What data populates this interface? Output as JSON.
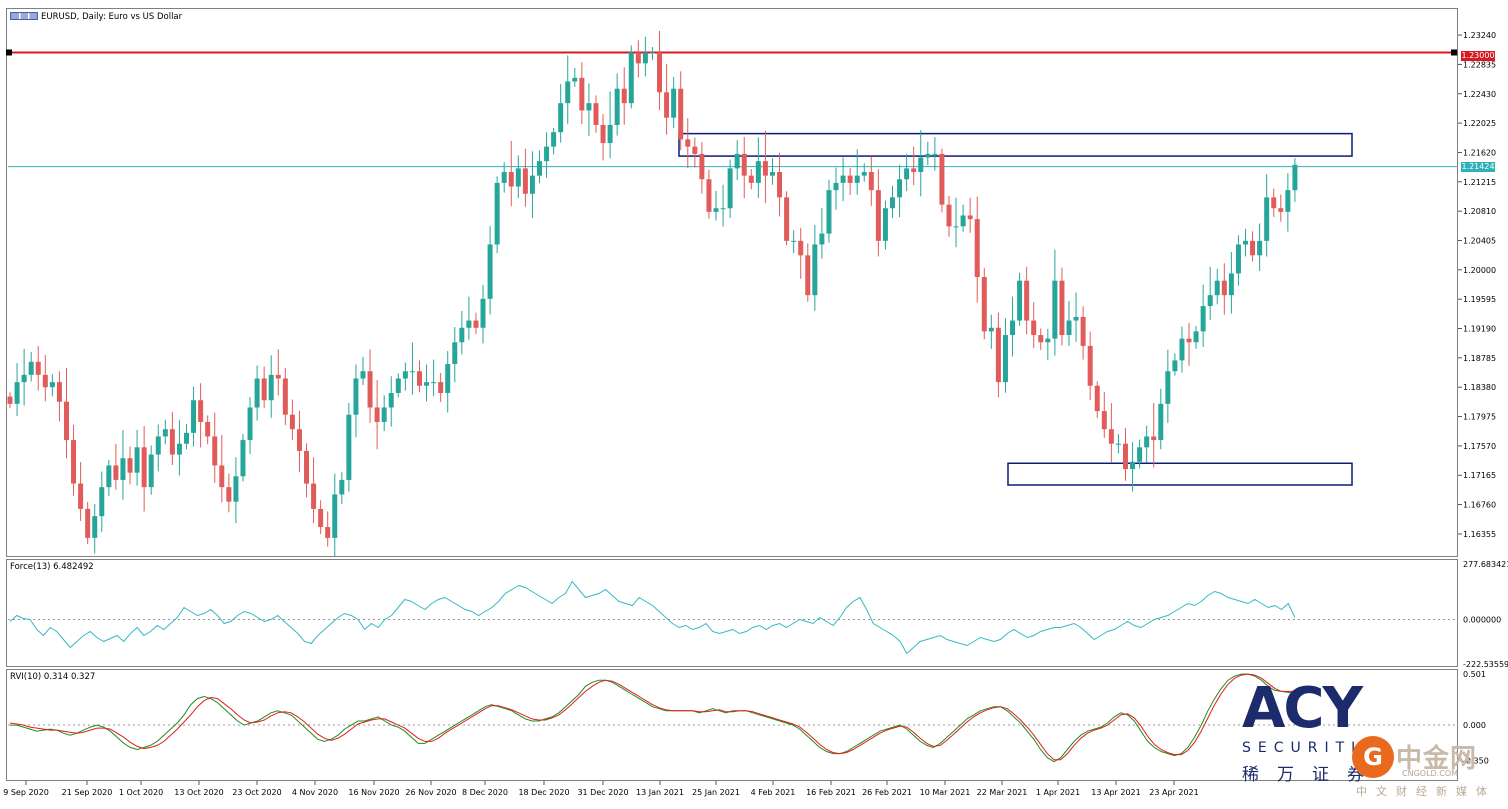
{
  "window": {
    "title": "EURUSD, Daily:  Euro vs US Dollar"
  },
  "colors": {
    "bull": "#26a69a",
    "bear": "#e25b5b",
    "resistance": "#d71920",
    "current_price_line": "#2eb0b8",
    "zone_box": "#0a1b7a",
    "force_line": "#35b9c4",
    "rvi_main": "#1f8c1f",
    "rvi_signal": "#e01e1e"
  },
  "badges": {
    "resistance": "1.23000",
    "current": "1.21424"
  },
  "indicators": {
    "force_title": "Force(13) 6.482492",
    "rvi_title": "RVI(10) 0.314 0.327"
  },
  "watermark": {
    "acy": "ACY",
    "securities": "SECURITIES",
    "acy_cn": "稀万证券",
    "cngold_cn": "中金网",
    "cngold_url": "CNGOLD.COM",
    "cngold_sub": "中文财经新媒体"
  },
  "chart_data": [
    {
      "type": "candlestick",
      "title": "EURUSD, Daily:  Euro vs US Dollar",
      "ylim": [
        1.1605,
        1.236
      ],
      "y_ticks": [
        "1.23240",
        "1.22835",
        "1.22430",
        "1.22025",
        "1.21620",
        "1.21215",
        "1.20810",
        "1.20405",
        "1.20000",
        "1.19595",
        "1.19190",
        "1.18785",
        "1.18380",
        "1.17975",
        "1.17570",
        "1.17165",
        "1.16760",
        "1.16355"
      ],
      "x_ticks": [
        "9 Sep 2020",
        "21 Sep 2020",
        "1 Oct 2020",
        "13 Oct 2020",
        "23 Oct 2020",
        "4 Nov 2020",
        "16 Nov 2020",
        "26 Nov 2020",
        "8 Dec 2020",
        "18 Dec 2020",
        "31 Dec 2020",
        "13 Jan 2021",
        "25 Jan 2021",
        "4 Feb 2021",
        "16 Feb 2021",
        "26 Feb 2021",
        "10 Mar 2021",
        "22 Mar 2021",
        "1 Apr 2021",
        "13 Apr 2021",
        "23 Apr 2021"
      ],
      "horizontal_lines": [
        {
          "price": 1.23,
          "label": "1.23000",
          "color": "#d71920"
        },
        {
          "price": 1.21424,
          "label": "1.21424",
          "color": "#2eb0b8"
        }
      ],
      "zones": [
        {
          "from_date": "19 Jan 2021",
          "to_date": "14 May 2021",
          "low": 1.2157,
          "high": 1.2188
        },
        {
          "from_date": "25 Mar 2021",
          "to_date": "14 May 2021",
          "low": 1.1703,
          "high": 1.1733
        }
      ],
      "close": [
        1.1815,
        1.1845,
        1.1855,
        1.1873,
        1.1855,
        1.1838,
        1.1845,
        1.1818,
        1.1765,
        1.1705,
        1.167,
        1.163,
        1.166,
        1.17,
        1.173,
        1.171,
        1.174,
        1.172,
        1.1755,
        1.17,
        1.1745,
        1.177,
        1.178,
        1.1745,
        1.176,
        1.1775,
        1.182,
        1.179,
        1.177,
        1.173,
        1.17,
        1.168,
        1.1715,
        1.1765,
        1.181,
        1.185,
        1.182,
        1.1855,
        1.185,
        1.18,
        1.178,
        1.175,
        1.1705,
        1.167,
        1.1645,
        1.163,
        1.169,
        1.171,
        1.18,
        1.185,
        1.186,
        1.181,
        1.179,
        1.181,
        1.183,
        1.185,
        1.186,
        1.186,
        1.184,
        1.1845,
        1.1845,
        1.183,
        1.187,
        1.19,
        1.192,
        1.193,
        1.192,
        1.196,
        1.2035,
        1.212,
        1.2135,
        1.2115,
        1.214,
        1.2105,
        1.213,
        1.215,
        1.217,
        1.219,
        1.223,
        1.226,
        1.2265,
        1.222,
        1.223,
        1.22,
        1.2175,
        1.22,
        1.225,
        1.223,
        1.23,
        1.2285,
        1.23,
        1.23,
        1.2245,
        1.221,
        1.225,
        1.218,
        1.217,
        1.216,
        1.2125,
        1.208,
        1.2085,
        1.2085,
        1.214,
        1.216,
        1.213,
        1.212,
        1.215,
        1.213,
        1.2135,
        1.21,
        1.204,
        1.204,
        1.202,
        1.1965,
        1.2035,
        1.205,
        1.211,
        1.212,
        1.213,
        1.212,
        1.213,
        1.2135,
        1.211,
        1.204,
        1.2085,
        1.21,
        1.2125,
        1.214,
        1.2135,
        1.2155,
        1.216,
        1.216,
        1.209,
        1.206,
        1.206,
        1.2075,
        1.207,
        1.199,
        1.1915,
        1.192,
        1.1845,
        1.191,
        1.193,
        1.1985,
        1.193,
        1.191,
        1.19,
        1.1905,
        1.1985,
        1.191,
        1.193,
        1.1935,
        1.1895,
        1.184,
        1.1805,
        1.178,
        1.176,
        1.176,
        1.1725,
        1.1735,
        1.1755,
        1.177,
        1.1765,
        1.1815,
        1.186,
        1.1875,
        1.1905,
        1.19,
        1.1915,
        1.195,
        1.1965,
        1.1985,
        1.1965,
        1.1995,
        1.2035,
        1.204,
        1.202,
        1.204,
        1.21,
        1.2085,
        1.208,
        1.211,
        1.2145
      ],
      "series": [
        {
          "name": "EURUSD Daily candles",
          "open": [
            1.1825,
            1.1815,
            1.1845,
            1.1855,
            1.1873,
            1.1855,
            1.1838,
            1.1845,
            1.1818,
            1.1765,
            1.1705,
            1.167,
            1.163,
            1.166,
            1.17,
            1.173,
            1.171,
            1.174,
            1.172,
            1.1755,
            1.17,
            1.1745,
            1.177,
            1.178,
            1.1745,
            1.176,
            1.1775,
            1.182,
            1.179,
            1.177,
            1.173,
            1.17,
            1.168,
            1.1715,
            1.1765,
            1.181,
            1.185,
            1.182,
            1.1855,
            1.185,
            1.18,
            1.178,
            1.175,
            1.1705,
            1.167,
            1.1645,
            1.163,
            1.169,
            1.171,
            1.18,
            1.185,
            1.186,
            1.181,
            1.179,
            1.181,
            1.183,
            1.185,
            1.186,
            1.186,
            1.184,
            1.1845,
            1.1845,
            1.183,
            1.187,
            1.19,
            1.192,
            1.193,
            1.192,
            1.196,
            1.2035,
            1.212,
            1.2135,
            1.2115,
            1.214,
            1.2105,
            1.213,
            1.215,
            1.217,
            1.219,
            1.223,
            1.226,
            1.2265,
            1.222,
            1.223,
            1.22,
            1.2175,
            1.22,
            1.225,
            1.223,
            1.23,
            1.2285,
            1.23,
            1.23,
            1.2245,
            1.221,
            1.225,
            1.218,
            1.217,
            1.216,
            1.2125,
            1.208,
            1.2085,
            1.2085,
            1.214,
            1.216,
            1.213,
            1.212,
            1.215,
            1.213,
            1.2135,
            1.21,
            1.204,
            1.204,
            1.202,
            1.1965,
            1.2035,
            1.205,
            1.211,
            1.212,
            1.213,
            1.212,
            1.213,
            1.2135,
            1.211,
            1.204,
            1.2085,
            1.21,
            1.2125,
            1.214,
            1.2135,
            1.2155,
            1.216,
            1.216,
            1.209,
            1.206,
            1.206,
            1.2075,
            1.207,
            1.199,
            1.1915,
            1.192,
            1.1845,
            1.191,
            1.193,
            1.1985,
            1.193,
            1.191,
            1.19,
            1.1905,
            1.1985,
            1.191,
            1.193,
            1.1935,
            1.1895,
            1.184,
            1.1805,
            1.178,
            1.176,
            1.176,
            1.1725,
            1.1735,
            1.1755,
            1.177,
            1.1765,
            1.1815,
            1.186,
            1.1875,
            1.1905,
            1.19,
            1.1915,
            1.195,
            1.1965,
            1.1985,
            1.1965,
            1.1995,
            1.2035,
            1.204,
            1.202,
            1.204,
            1.21,
            1.2085,
            1.208,
            1.211
          ]
        }
      ]
    },
    {
      "type": "line",
      "title": "Force(13) 6.482492",
      "ylim": [
        -222.53559,
        277.683421
      ],
      "y_ticks": [
        "277.683421",
        "0.000000",
        "-222.53559"
      ],
      "series": [
        {
          "name": "Force(13)",
          "color": "#35b9c4",
          "values": [
            -10,
            20,
            5,
            0,
            -50,
            -80,
            -40,
            -60,
            -100,
            -140,
            -110,
            -80,
            -60,
            -90,
            -110,
            -95,
            -80,
            -110,
            -70,
            -40,
            -80,
            -60,
            -30,
            -50,
            -20,
            10,
            60,
            40,
            20,
            30,
            50,
            20,
            -20,
            -10,
            20,
            40,
            30,
            10,
            -10,
            0,
            20,
            -10,
            -40,
            -70,
            -110,
            -120,
            -80,
            -50,
            -20,
            10,
            30,
            20,
            0,
            -50,
            -20,
            -40,
            0,
            20,
            60,
            100,
            90,
            70,
            50,
            80,
            100,
            110,
            90,
            70,
            50,
            40,
            20,
            40,
            60,
            90,
            130,
            150,
            170,
            160,
            140,
            120,
            100,
            80,
            110,
            130,
            190,
            150,
            110,
            120,
            130,
            150,
            120,
            90,
            80,
            70,
            110,
            90,
            70,
            40,
            10,
            -20,
            -40,
            -30,
            -50,
            -40,
            -20,
            -60,
            -70,
            -60,
            -50,
            -70,
            -60,
            -40,
            -30,
            -50,
            -30,
            -20,
            -40,
            -20,
            0,
            -10,
            -20,
            10,
            -10,
            -30,
            10,
            60,
            90,
            110,
            50,
            -20,
            -40,
            -60,
            -80,
            -110,
            -170,
            -140,
            -110,
            -100,
            -90,
            -80,
            -100,
            -110,
            -120,
            -130,
            -110,
            -90,
            -100,
            -110,
            -100,
            -70,
            -50,
            -70,
            -90,
            -80,
            -60,
            -50,
            -40,
            -40,
            -30,
            -20,
            -40,
            -70,
            -100,
            -80,
            -60,
            -50,
            -30,
            -10,
            -30,
            -40,
            -20,
            0,
            10,
            20,
            40,
            60,
            80,
            70,
            90,
            120,
            140,
            130,
            110,
            100,
            90,
            80,
            100,
            80,
            60,
            70,
            50,
            80,
            10
          ]
        }
      ]
    },
    {
      "type": "line",
      "title": "RVI(10) 0.314 0.327",
      "ylim": [
        -0.5,
        0.501
      ],
      "y_ticks": [
        "0.501",
        "0.000",
        "-0.350"
      ],
      "series": [
        {
          "name": "RVI main",
          "color": "#1f8c1f",
          "values": [
            0.0,
            0.0,
            -0.02,
            -0.04,
            -0.06,
            -0.05,
            -0.04,
            -0.05,
            -0.08,
            -0.1,
            -0.08,
            -0.05,
            -0.02,
            0.0,
            -0.02,
            -0.06,
            -0.12,
            -0.18,
            -0.22,
            -0.24,
            -0.22,
            -0.2,
            -0.16,
            -0.1,
            -0.04,
            0.02,
            0.1,
            0.2,
            0.26,
            0.28,
            0.26,
            0.22,
            0.16,
            0.1,
            0.04,
            0.0,
            0.02,
            0.04,
            0.08,
            0.12,
            0.14,
            0.12,
            0.1,
            0.04,
            -0.02,
            -0.08,
            -0.14,
            -0.16,
            -0.14,
            -0.1,
            -0.04,
            0.0,
            0.04,
            0.04,
            0.06,
            0.08,
            0.04,
            0.0,
            -0.02,
            -0.06,
            -0.12,
            -0.18,
            -0.18,
            -0.14,
            -0.1,
            -0.06,
            -0.02,
            0.02,
            0.06,
            0.1,
            0.14,
            0.18,
            0.2,
            0.18,
            0.16,
            0.14,
            0.1,
            0.06,
            0.04,
            0.04,
            0.06,
            0.08,
            0.12,
            0.18,
            0.24,
            0.3,
            0.38,
            0.42,
            0.44,
            0.44,
            0.42,
            0.38,
            0.34,
            0.3,
            0.26,
            0.22,
            0.18,
            0.16,
            0.14,
            0.14,
            0.14,
            0.14,
            0.14,
            0.12,
            0.14,
            0.16,
            0.14,
            0.12,
            0.14,
            0.14,
            0.14,
            0.12,
            0.1,
            0.08,
            0.06,
            0.04,
            0.02,
            0.0,
            -0.04,
            -0.1,
            -0.16,
            -0.22,
            -0.26,
            -0.28,
            -0.28,
            -0.26,
            -0.22,
            -0.18,
            -0.14,
            -0.1,
            -0.06,
            -0.04,
            -0.02,
            0.0,
            -0.04,
            -0.1,
            -0.16,
            -0.2,
            -0.22,
            -0.18,
            -0.12,
            -0.06,
            0.0,
            0.06,
            0.1,
            0.14,
            0.16,
            0.18,
            0.18,
            0.14,
            0.08,
            0.02,
            -0.06,
            -0.14,
            -0.24,
            -0.32,
            -0.36,
            -0.32,
            -0.24,
            -0.16,
            -0.1,
            -0.06,
            -0.04,
            -0.02,
            0.02,
            0.08,
            0.12,
            0.1,
            0.04,
            -0.06,
            -0.16,
            -0.22,
            -0.26,
            -0.28,
            -0.3,
            -0.28,
            -0.22,
            -0.12,
            0.0,
            0.14,
            0.26,
            0.36,
            0.44,
            0.48,
            0.5,
            0.5,
            0.48,
            0.44,
            0.38,
            0.34,
            0.33,
            0.32,
            0.31
          ]
        },
        {
          "name": "RVI signal",
          "color": "#e01e1e",
          "values": [
            0.02,
            0.01,
            0.0,
            -0.02,
            -0.03,
            -0.04,
            -0.05,
            -0.05,
            -0.06,
            -0.07,
            -0.08,
            -0.07,
            -0.05,
            -0.03,
            -0.03,
            -0.04,
            -0.08,
            -0.12,
            -0.17,
            -0.21,
            -0.23,
            -0.22,
            -0.2,
            -0.16,
            -0.1,
            -0.04,
            0.03,
            0.1,
            0.18,
            0.24,
            0.27,
            0.26,
            0.21,
            0.16,
            0.1,
            0.05,
            0.02,
            0.03,
            0.05,
            0.09,
            0.12,
            0.13,
            0.12,
            0.08,
            0.03,
            -0.03,
            -0.09,
            -0.13,
            -0.15,
            -0.13,
            -0.09,
            -0.04,
            0.01,
            0.03,
            0.05,
            0.06,
            0.06,
            0.03,
            0.0,
            -0.03,
            -0.08,
            -0.13,
            -0.16,
            -0.16,
            -0.13,
            -0.08,
            -0.04,
            0.0,
            0.04,
            0.08,
            0.12,
            0.16,
            0.19,
            0.19,
            0.17,
            0.15,
            0.12,
            0.09,
            0.06,
            0.05,
            0.05,
            0.07,
            0.1,
            0.15,
            0.21,
            0.27,
            0.33,
            0.38,
            0.42,
            0.44,
            0.43,
            0.4,
            0.36,
            0.32,
            0.28,
            0.24,
            0.2,
            0.17,
            0.15,
            0.14,
            0.14,
            0.14,
            0.14,
            0.13,
            0.13,
            0.14,
            0.15,
            0.13,
            0.13,
            0.14,
            0.14,
            0.13,
            0.11,
            0.09,
            0.07,
            0.05,
            0.03,
            0.01,
            -0.02,
            -0.07,
            -0.13,
            -0.19,
            -0.24,
            -0.27,
            -0.28,
            -0.27,
            -0.24,
            -0.2,
            -0.16,
            -0.12,
            -0.08,
            -0.05,
            -0.03,
            -0.01,
            -0.02,
            -0.07,
            -0.13,
            -0.18,
            -0.21,
            -0.2,
            -0.15,
            -0.09,
            -0.03,
            0.03,
            0.08,
            0.12,
            0.15,
            0.17,
            0.18,
            0.16,
            0.11,
            0.05,
            -0.02,
            -0.1,
            -0.19,
            -0.28,
            -0.34,
            -0.34,
            -0.28,
            -0.2,
            -0.13,
            -0.08,
            -0.05,
            -0.03,
            0.0,
            0.05,
            0.1,
            0.11,
            0.07,
            -0.01,
            -0.11,
            -0.19,
            -0.24,
            -0.27,
            -0.29,
            -0.29,
            -0.25,
            -0.17,
            -0.06,
            0.07,
            0.2,
            0.31,
            0.4,
            0.46,
            0.49,
            0.5,
            0.49,
            0.46,
            0.41,
            0.36,
            0.33,
            0.33,
            0.33
          ]
        }
      ]
    }
  ]
}
